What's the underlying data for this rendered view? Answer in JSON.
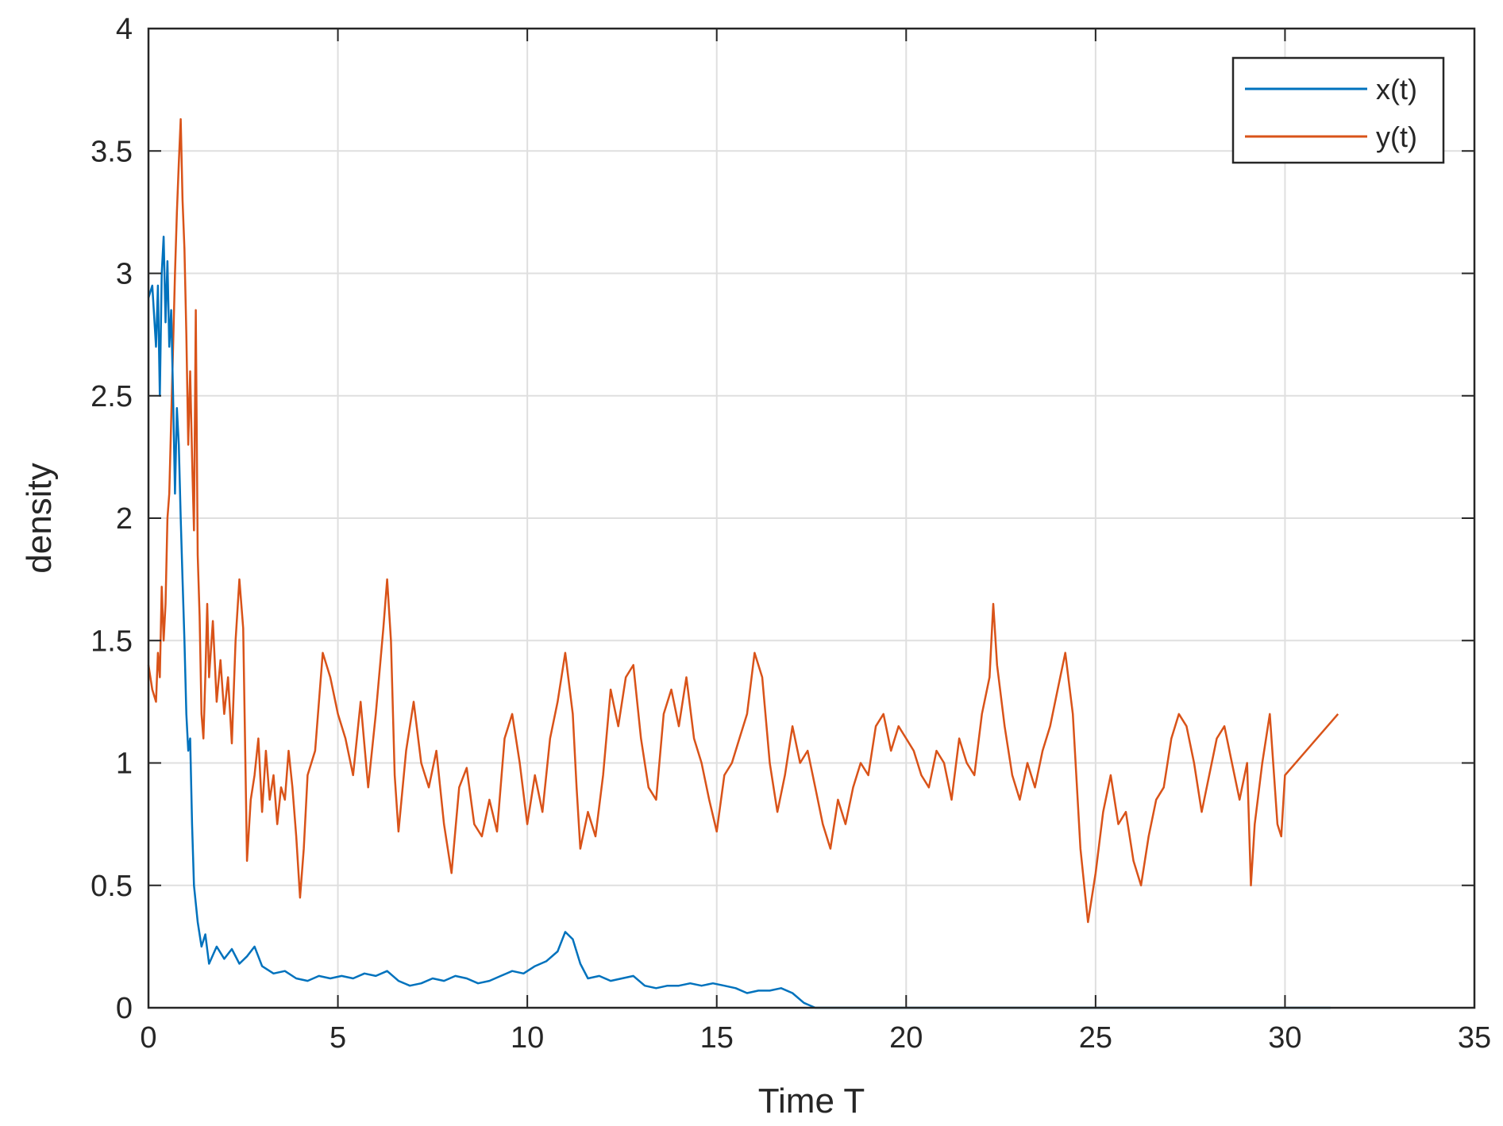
{
  "chart_data": {
    "type": "line",
    "title": "",
    "xlabel": "Time T",
    "ylabel": "density",
    "xlim": [
      0,
      35
    ],
    "ylim": [
      0,
      4
    ],
    "xticks": [
      "0",
      "5",
      "10",
      "15",
      "20",
      "25",
      "30",
      "35"
    ],
    "yticks": [
      "0",
      "0.5",
      "1",
      "1.5",
      "2",
      "2.5",
      "3",
      "3.5",
      "4"
    ],
    "grid": true,
    "legend_position": "top-right",
    "series": [
      {
        "name": "x(t)",
        "color": "#0072BD",
        "points": [
          [
            0,
            2.9
          ],
          [
            0.1,
            2.95
          ],
          [
            0.2,
            2.7
          ],
          [
            0.25,
            2.95
          ],
          [
            0.3,
            2.5
          ],
          [
            0.35,
            3.0
          ],
          [
            0.4,
            3.15
          ],
          [
            0.45,
            2.8
          ],
          [
            0.5,
            3.05
          ],
          [
            0.55,
            2.7
          ],
          [
            0.6,
            2.85
          ],
          [
            0.65,
            2.5
          ],
          [
            0.7,
            2.1
          ],
          [
            0.75,
            2.45
          ],
          [
            0.8,
            2.3
          ],
          [
            0.85,
            2.0
          ],
          [
            0.9,
            1.75
          ],
          [
            0.95,
            1.5
          ],
          [
            1.0,
            1.2
          ],
          [
            1.05,
            1.05
          ],
          [
            1.1,
            1.1
          ],
          [
            1.15,
            0.75
          ],
          [
            1.2,
            0.5
          ],
          [
            1.3,
            0.35
          ],
          [
            1.4,
            0.25
          ],
          [
            1.5,
            0.3
          ],
          [
            1.6,
            0.18
          ],
          [
            1.8,
            0.25
          ],
          [
            2.0,
            0.2
          ],
          [
            2.2,
            0.24
          ],
          [
            2.4,
            0.18
          ],
          [
            2.6,
            0.21
          ],
          [
            2.8,
            0.25
          ],
          [
            3.0,
            0.17
          ],
          [
            3.3,
            0.14
          ],
          [
            3.6,
            0.15
          ],
          [
            3.9,
            0.12
          ],
          [
            4.2,
            0.11
          ],
          [
            4.5,
            0.13
          ],
          [
            4.8,
            0.12
          ],
          [
            5.1,
            0.13
          ],
          [
            5.4,
            0.12
          ],
          [
            5.7,
            0.14
          ],
          [
            6.0,
            0.13
          ],
          [
            6.3,
            0.15
          ],
          [
            6.6,
            0.11
          ],
          [
            6.9,
            0.09
          ],
          [
            7.2,
            0.1
          ],
          [
            7.5,
            0.12
          ],
          [
            7.8,
            0.11
          ],
          [
            8.1,
            0.13
          ],
          [
            8.4,
            0.12
          ],
          [
            8.7,
            0.1
          ],
          [
            9.0,
            0.11
          ],
          [
            9.3,
            0.13
          ],
          [
            9.6,
            0.15
          ],
          [
            9.9,
            0.14
          ],
          [
            10.2,
            0.17
          ],
          [
            10.5,
            0.19
          ],
          [
            10.8,
            0.23
          ],
          [
            11.0,
            0.31
          ],
          [
            11.2,
            0.28
          ],
          [
            11.4,
            0.18
          ],
          [
            11.6,
            0.12
          ],
          [
            11.9,
            0.13
          ],
          [
            12.2,
            0.11
          ],
          [
            12.5,
            0.12
          ],
          [
            12.8,
            0.13
          ],
          [
            13.1,
            0.09
          ],
          [
            13.4,
            0.08
          ],
          [
            13.7,
            0.09
          ],
          [
            14.0,
            0.09
          ],
          [
            14.3,
            0.1
          ],
          [
            14.6,
            0.09
          ],
          [
            14.9,
            0.1
          ],
          [
            15.2,
            0.09
          ],
          [
            15.5,
            0.08
          ],
          [
            15.8,
            0.06
          ],
          [
            16.1,
            0.07
          ],
          [
            16.4,
            0.07
          ],
          [
            16.7,
            0.08
          ],
          [
            17.0,
            0.06
          ],
          [
            17.3,
            0.02
          ],
          [
            17.6,
            0.0
          ],
          [
            20.0,
            0.0
          ],
          [
            25.0,
            0.0
          ],
          [
            31.2,
            0.0
          ]
        ]
      },
      {
        "name": "y(t)",
        "color": "#D95319",
        "points": [
          [
            0,
            1.4
          ],
          [
            0.1,
            1.3
          ],
          [
            0.2,
            1.25
          ],
          [
            0.25,
            1.45
          ],
          [
            0.3,
            1.35
          ],
          [
            0.35,
            1.72
          ],
          [
            0.4,
            1.5
          ],
          [
            0.45,
            1.65
          ],
          [
            0.5,
            2.0
          ],
          [
            0.55,
            2.1
          ],
          [
            0.6,
            2.4
          ],
          [
            0.65,
            2.7
          ],
          [
            0.7,
            3.0
          ],
          [
            0.75,
            3.25
          ],
          [
            0.8,
            3.45
          ],
          [
            0.85,
            3.63
          ],
          [
            0.9,
            3.3
          ],
          [
            0.95,
            3.1
          ],
          [
            1.0,
            2.75
          ],
          [
            1.05,
            2.3
          ],
          [
            1.1,
            2.6
          ],
          [
            1.15,
            2.25
          ],
          [
            1.2,
            1.95
          ],
          [
            1.25,
            2.85
          ],
          [
            1.3,
            1.85
          ],
          [
            1.35,
            1.6
          ],
          [
            1.4,
            1.2
          ],
          [
            1.45,
            1.1
          ],
          [
            1.5,
            1.35
          ],
          [
            1.55,
            1.65
          ],
          [
            1.6,
            1.35
          ],
          [
            1.7,
            1.58
          ],
          [
            1.8,
            1.25
          ],
          [
            1.9,
            1.42
          ],
          [
            2.0,
            1.2
          ],
          [
            2.1,
            1.35
          ],
          [
            2.2,
            1.08
          ],
          [
            2.3,
            1.5
          ],
          [
            2.4,
            1.75
          ],
          [
            2.5,
            1.55
          ],
          [
            2.6,
            0.6
          ],
          [
            2.7,
            0.85
          ],
          [
            2.8,
            0.95
          ],
          [
            2.9,
            1.1
          ],
          [
            3.0,
            0.8
          ],
          [
            3.1,
            1.05
          ],
          [
            3.2,
            0.85
          ],
          [
            3.3,
            0.95
          ],
          [
            3.4,
            0.75
          ],
          [
            3.5,
            0.9
          ],
          [
            3.6,
            0.85
          ],
          [
            3.7,
            1.05
          ],
          [
            3.8,
            0.9
          ],
          [
            3.9,
            0.7
          ],
          [
            4.0,
            0.45
          ],
          [
            4.1,
            0.65
          ],
          [
            4.2,
            0.95
          ],
          [
            4.4,
            1.05
          ],
          [
            4.6,
            1.45
          ],
          [
            4.8,
            1.35
          ],
          [
            5.0,
            1.2
          ],
          [
            5.2,
            1.1
          ],
          [
            5.4,
            0.95
          ],
          [
            5.6,
            1.25
          ],
          [
            5.8,
            0.9
          ],
          [
            6.0,
            1.2
          ],
          [
            6.2,
            1.55
          ],
          [
            6.3,
            1.75
          ],
          [
            6.4,
            1.5
          ],
          [
            6.5,
            0.95
          ],
          [
            6.6,
            0.72
          ],
          [
            6.8,
            1.05
          ],
          [
            7.0,
            1.25
          ],
          [
            7.2,
            1.0
          ],
          [
            7.4,
            0.9
          ],
          [
            7.6,
            1.05
          ],
          [
            7.8,
            0.75
          ],
          [
            8.0,
            0.55
          ],
          [
            8.2,
            0.9
          ],
          [
            8.4,
            0.98
          ],
          [
            8.6,
            0.75
          ],
          [
            8.8,
            0.7
          ],
          [
            9.0,
            0.85
          ],
          [
            9.2,
            0.72
          ],
          [
            9.4,
            1.1
          ],
          [
            9.6,
            1.2
          ],
          [
            9.8,
            1.0
          ],
          [
            10.0,
            0.75
          ],
          [
            10.2,
            0.95
          ],
          [
            10.4,
            0.8
          ],
          [
            10.6,
            1.1
          ],
          [
            10.8,
            1.25
          ],
          [
            11.0,
            1.45
          ],
          [
            11.2,
            1.2
          ],
          [
            11.3,
            0.9
          ],
          [
            11.4,
            0.65
          ],
          [
            11.6,
            0.8
          ],
          [
            11.8,
            0.7
          ],
          [
            12.0,
            0.95
          ],
          [
            12.2,
            1.3
          ],
          [
            12.4,
            1.15
          ],
          [
            12.6,
            1.35
          ],
          [
            12.8,
            1.4
          ],
          [
            13.0,
            1.1
          ],
          [
            13.2,
            0.9
          ],
          [
            13.4,
            0.85
          ],
          [
            13.6,
            1.2
          ],
          [
            13.8,
            1.3
          ],
          [
            14.0,
            1.15
          ],
          [
            14.2,
            1.35
          ],
          [
            14.4,
            1.1
          ],
          [
            14.6,
            1.0
          ],
          [
            14.8,
            0.85
          ],
          [
            15.0,
            0.72
          ],
          [
            15.2,
            0.95
          ],
          [
            15.4,
            1.0
          ],
          [
            15.6,
            1.1
          ],
          [
            15.8,
            1.2
          ],
          [
            16.0,
            1.45
          ],
          [
            16.2,
            1.35
          ],
          [
            16.4,
            1.0
          ],
          [
            16.6,
            0.8
          ],
          [
            16.8,
            0.95
          ],
          [
            17.0,
            1.15
          ],
          [
            17.2,
            1.0
          ],
          [
            17.4,
            1.05
          ],
          [
            17.6,
            0.9
          ],
          [
            17.8,
            0.75
          ],
          [
            18.0,
            0.65
          ],
          [
            18.2,
            0.85
          ],
          [
            18.4,
            0.75
          ],
          [
            18.6,
            0.9
          ],
          [
            18.8,
            1.0
          ],
          [
            19.0,
            0.95
          ],
          [
            19.2,
            1.15
          ],
          [
            19.4,
            1.2
          ],
          [
            19.6,
            1.05
          ],
          [
            19.8,
            1.15
          ],
          [
            20.0,
            1.1
          ],
          [
            20.2,
            1.05
          ],
          [
            20.4,
            0.95
          ],
          [
            20.6,
            0.9
          ],
          [
            20.8,
            1.05
          ],
          [
            21.0,
            1.0
          ],
          [
            21.2,
            0.85
          ],
          [
            21.4,
            1.1
          ],
          [
            21.6,
            1.0
          ],
          [
            21.8,
            0.95
          ],
          [
            22.0,
            1.2
          ],
          [
            22.2,
            1.35
          ],
          [
            22.3,
            1.65
          ],
          [
            22.4,
            1.4
          ],
          [
            22.6,
            1.15
          ],
          [
            22.8,
            0.95
          ],
          [
            23.0,
            0.85
          ],
          [
            23.2,
            1.0
          ],
          [
            23.4,
            0.9
          ],
          [
            23.6,
            1.05
          ],
          [
            23.8,
            1.15
          ],
          [
            24.0,
            1.3
          ],
          [
            24.2,
            1.45
          ],
          [
            24.4,
            1.2
          ],
          [
            24.6,
            0.65
          ],
          [
            24.8,
            0.35
          ],
          [
            25.0,
            0.55
          ],
          [
            25.2,
            0.8
          ],
          [
            25.4,
            0.95
          ],
          [
            25.6,
            0.75
          ],
          [
            25.8,
            0.8
          ],
          [
            26.0,
            0.6
          ],
          [
            26.2,
            0.5
          ],
          [
            26.4,
            0.7
          ],
          [
            26.6,
            0.85
          ],
          [
            26.8,
            0.9
          ],
          [
            27.0,
            1.1
          ],
          [
            27.2,
            1.2
          ],
          [
            27.4,
            1.15
          ],
          [
            27.6,
            1.0
          ],
          [
            27.8,
            0.8
          ],
          [
            28.0,
            0.95
          ],
          [
            28.2,
            1.1
          ],
          [
            28.4,
            1.15
          ],
          [
            28.6,
            1.0
          ],
          [
            28.8,
            0.85
          ],
          [
            29.0,
            1.0
          ],
          [
            29.1,
            0.5
          ],
          [
            29.2,
            0.75
          ],
          [
            29.4,
            1.0
          ],
          [
            29.6,
            1.2
          ],
          [
            29.8,
            0.75
          ],
          [
            29.9,
            0.7
          ],
          [
            30.0,
            0.95
          ],
          [
            31.4,
            1.2
          ]
        ]
      }
    ]
  }
}
